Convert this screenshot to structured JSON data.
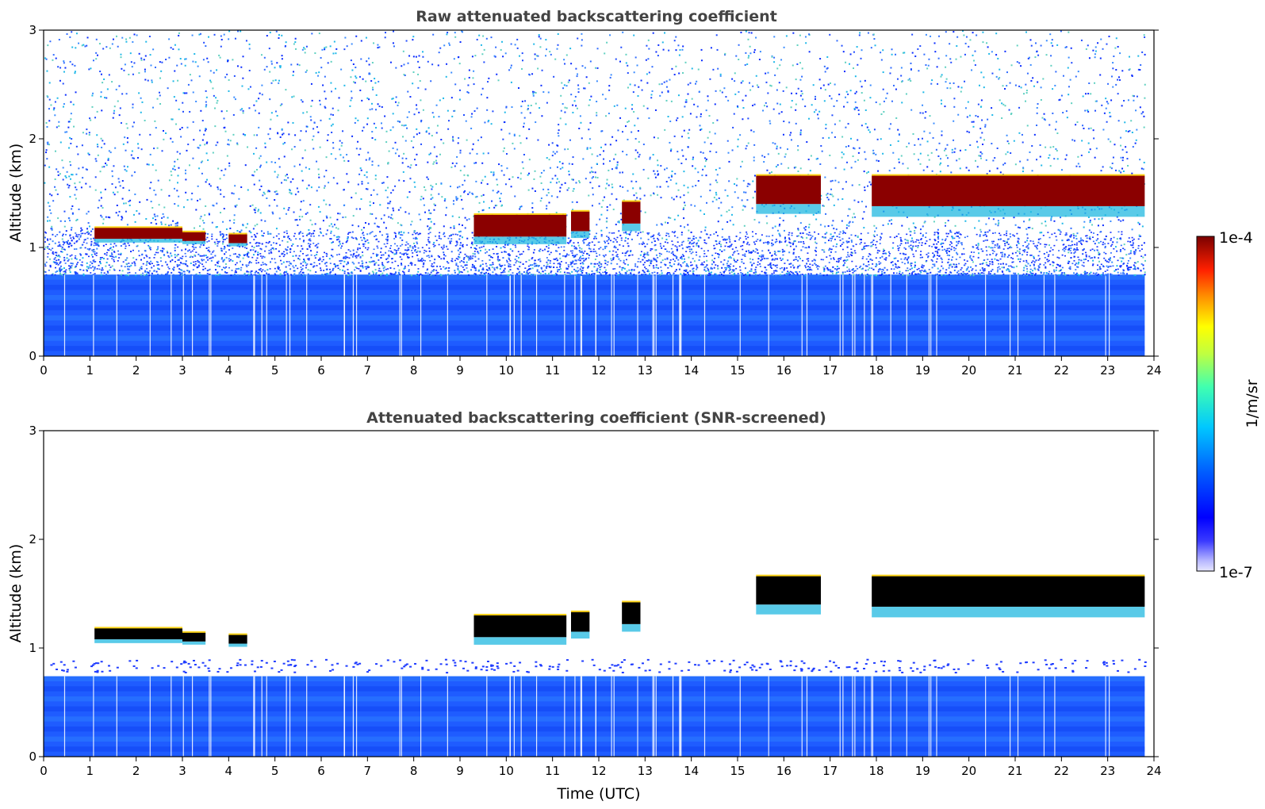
{
  "colors": {
    "background": "#ffffff",
    "title_text": "#444444",
    "axis": "#000000",
    "cloud_core_raw": "#8b0000",
    "cloud_core_screened": "#000000",
    "aerosol_layer": "#1f5cff",
    "noise": "#2f6bff"
  },
  "chart_data": [
    {
      "type": "heatmap",
      "title": "Raw attenuated backscattering coefficient",
      "xlabel": "",
      "ylabel": "Altitude (km)",
      "xlim": [
        0,
        24
      ],
      "ylim": [
        0,
        3
      ],
      "x_ticks": [
        "0",
        "1",
        "2",
        "3",
        "4",
        "5",
        "6",
        "7",
        "8",
        "9",
        "10",
        "11",
        "12",
        "13",
        "14",
        "15",
        "16",
        "17",
        "18",
        "19",
        "20",
        "21",
        "22",
        "23",
        "24"
      ],
      "y_ticks": [
        "0",
        "1",
        "2",
        "3"
      ],
      "grid": false,
      "cloud_layers": [
        {
          "start": 1.1,
          "end": 3.0,
          "base_km": 1.08,
          "top_km": 1.18
        },
        {
          "start": 3.0,
          "end": 3.5,
          "base_km": 1.06,
          "top_km": 1.14
        },
        {
          "start": 4.0,
          "end": 4.4,
          "base_km": 1.04,
          "top_km": 1.12
        },
        {
          "start": 9.3,
          "end": 11.3,
          "base_km": 1.1,
          "top_km": 1.3
        },
        {
          "start": 11.4,
          "end": 11.8,
          "base_km": 1.15,
          "top_km": 1.33
        },
        {
          "start": 12.5,
          "end": 12.9,
          "base_km": 1.22,
          "top_km": 1.42
        },
        {
          "start": 15.4,
          "end": 16.8,
          "base_km": 1.4,
          "top_km": 1.66
        },
        {
          "start": 17.9,
          "end": 23.8,
          "base_km": 1.38,
          "top_km": 1.66
        }
      ],
      "aerosol_layer": {
        "start": 0,
        "end": 23.8,
        "top_km": 0.75
      },
      "noise_region": {
        "start": 0,
        "end": 23.8,
        "bottom_km": 0.75,
        "top_km": 3.0
      }
    },
    {
      "type": "heatmap",
      "title": "Attenuated backscattering coefficient (SNR-screened)",
      "xlabel": "Time (UTC)",
      "ylabel": "Altitude (km)",
      "xlim": [
        0,
        24
      ],
      "ylim": [
        0,
        3
      ],
      "x_ticks": [
        "0",
        "1",
        "2",
        "3",
        "4",
        "5",
        "6",
        "7",
        "8",
        "9",
        "10",
        "11",
        "12",
        "13",
        "14",
        "15",
        "16",
        "17",
        "18",
        "19",
        "20",
        "21",
        "22",
        "23",
        "24"
      ],
      "y_ticks": [
        "0",
        "1",
        "2",
        "3"
      ],
      "grid": false,
      "cloud_layers": [
        {
          "start": 1.1,
          "end": 3.0,
          "base_km": 1.08,
          "top_km": 1.18
        },
        {
          "start": 3.0,
          "end": 3.5,
          "base_km": 1.06,
          "top_km": 1.14
        },
        {
          "start": 4.0,
          "end": 4.4,
          "base_km": 1.04,
          "top_km": 1.12
        },
        {
          "start": 9.3,
          "end": 11.3,
          "base_km": 1.1,
          "top_km": 1.3
        },
        {
          "start": 11.4,
          "end": 11.8,
          "base_km": 1.15,
          "top_km": 1.33
        },
        {
          "start": 12.5,
          "end": 12.9,
          "base_km": 1.22,
          "top_km": 1.42
        },
        {
          "start": 15.4,
          "end": 16.8,
          "base_km": 1.4,
          "top_km": 1.66
        },
        {
          "start": 17.9,
          "end": 23.8,
          "base_km": 1.38,
          "top_km": 1.66
        }
      ],
      "aerosol_layer": {
        "start": 0,
        "end": 23.8,
        "top_km": 0.74
      }
    }
  ],
  "colorbar": {
    "max_label": "1e-4",
    "min_label": "1e-7",
    "unit_label": "1/m/sr",
    "colormap": "jet"
  }
}
